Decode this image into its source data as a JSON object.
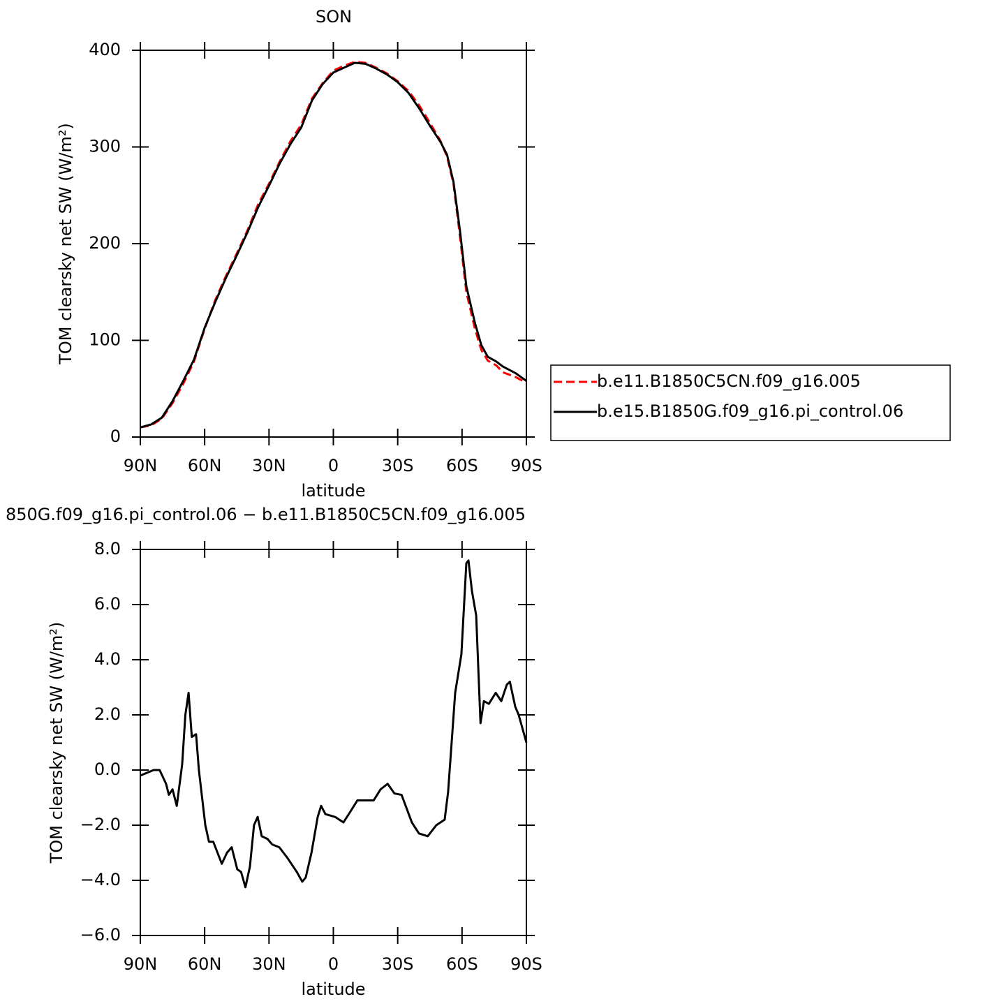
{
  "chart_data": [
    {
      "type": "line",
      "title": "SON",
      "xlabel": "latitude",
      "ylabel": "TOM clearsky net SW (W/m²)",
      "x": [
        90,
        85,
        80,
        75,
        70,
        65,
        60,
        55,
        50,
        45,
        40,
        35,
        30,
        25,
        20,
        15,
        10,
        5,
        0,
        -5,
        -10,
        -15,
        -20,
        -25,
        -30,
        -35,
        -40,
        -45,
        -50,
        -53,
        -56,
        -59,
        -62,
        -66,
        -69,
        -72,
        -76,
        -79,
        -85,
        -90
      ],
      "series": [
        {
          "name": "b.e11.B1850C5CN.f09_g16.005",
          "color": "#ff0000",
          "dashed": true,
          "values": [
            10,
            12,
            19,
            35,
            55,
            78,
            112,
            142,
            167,
            190,
            214,
            241,
            262,
            285,
            306,
            323,
            350,
            366,
            379,
            384,
            388,
            387,
            382,
            376,
            368,
            358,
            343,
            325,
            306,
            290,
            262,
            208,
            150,
            112,
            90,
            79,
            74,
            67,
            62,
            56
          ]
        },
        {
          "name": "b.e15.B1850G.f09_g16.pi_control.06",
          "color": "#000000",
          "dashed": false,
          "values": [
            10,
            13,
            20,
            37,
            58,
            80,
            113,
            140,
            165,
            188,
            212,
            238,
            260,
            283,
            303,
            320,
            348,
            365,
            377,
            382,
            387,
            386,
            381,
            375,
            367,
            356,
            340,
            322,
            305,
            292,
            264,
            214,
            156,
            118,
            95,
            83,
            78,
            73,
            66,
            58
          ]
        }
      ],
      "xlim": [
        90,
        -90
      ],
      "ylim": [
        0,
        400
      ],
      "xticks": [
        {
          "value": 90,
          "label": "90N"
        },
        {
          "value": 60,
          "label": "60N"
        },
        {
          "value": 30,
          "label": "30N"
        },
        0,
        {
          "value": -30,
          "label": "30S"
        },
        {
          "value": -60,
          "label": "60S"
        },
        {
          "value": -90,
          "label": "90S"
        }
      ],
      "yticks": [
        0,
        100,
        200,
        300,
        400
      ],
      "legend": "right"
    },
    {
      "type": "line",
      "title": "850G.f09_g16.pi_control.06 − b.e11.B1850C5CN.f09_g16.005",
      "xlabel": "latitude",
      "ylabel": "TOM clearsky net SW (W/m²)",
      "x": [
        90,
        83.8,
        81,
        78,
        76.7,
        75,
        73,
        70.5,
        69,
        67.5,
        66,
        64,
        62.7,
        59.7,
        58,
        56,
        52,
        49.6,
        47.4,
        44.8,
        43,
        41,
        38.9,
        37,
        35.3,
        33.4,
        30.7,
        28.5,
        25.2,
        21.3,
        17,
        14.5,
        12.9,
        10.2,
        7.3,
        5.7,
        3.7,
        -0.8,
        -4.7,
        -8,
        -11.2,
        -15.5,
        -18.8,
        -22,
        -25.3,
        -28.5,
        -31.8,
        -36.6,
        -39.9,
        -44,
        -48,
        -51.9,
        -53.5,
        -56.8,
        -59.7,
        -62,
        -63,
        -64.6,
        -66.6,
        -68.6,
        -70.2,
        -72.5,
        -75.7,
        -78.3,
        -80.9,
        -82.3,
        -84.8,
        -86.4,
        -90
      ],
      "series": [
        {
          "color": "#000000",
          "dashed": false,
          "values": [
            -0.2,
            0.0,
            0.0,
            -0.5,
            -0.9,
            -0.7,
            -1.3,
            0.2,
            2.0,
            2.8,
            1.2,
            1.3,
            0.0,
            -2.0,
            -2.6,
            -2.6,
            -3.4,
            -3.0,
            -2.8,
            -3.6,
            -3.7,
            -4.25,
            -3.5,
            -2.0,
            -1.7,
            -2.4,
            -2.5,
            -2.7,
            -2.8,
            -3.2,
            -3.7,
            -4.05,
            -3.9,
            -3.0,
            -1.7,
            -1.3,
            -1.6,
            -1.7,
            -1.9,
            -1.5,
            -1.1,
            -1.1,
            -1.1,
            -0.7,
            -0.5,
            -0.85,
            -0.9,
            -1.9,
            -2.3,
            -2.4,
            -2.0,
            -1.8,
            -0.8,
            2.8,
            4.2,
            7.5,
            7.6,
            6.5,
            5.6,
            1.7,
            2.5,
            2.4,
            2.8,
            2.5,
            3.1,
            3.2,
            2.3,
            2.0,
            1.0
          ]
        }
      ],
      "xlim": [
        90,
        -90
      ],
      "ylim": [
        -6,
        8
      ],
      "xticks": [
        {
          "value": 90,
          "label": "90N"
        },
        {
          "value": 60,
          "label": "60N"
        },
        {
          "value": 30,
          "label": "30N"
        },
        0,
        {
          "value": -30,
          "label": "30S"
        },
        {
          "value": -60,
          "label": "60S"
        },
        {
          "value": -90,
          "label": "90S"
        }
      ],
      "yticks": [
        {
          "value": -6,
          "label": "−6.0"
        },
        {
          "value": -4,
          "label": "−4.0"
        },
        {
          "value": -2,
          "label": "−2.0"
        },
        {
          "value": 0,
          "label": "0.0"
        },
        {
          "value": 2,
          "label": "2.0"
        },
        {
          "value": 4,
          "label": "4.0"
        },
        {
          "value": 6,
          "label": "6.0"
        },
        {
          "value": 8,
          "label": "8.0"
        }
      ]
    }
  ]
}
